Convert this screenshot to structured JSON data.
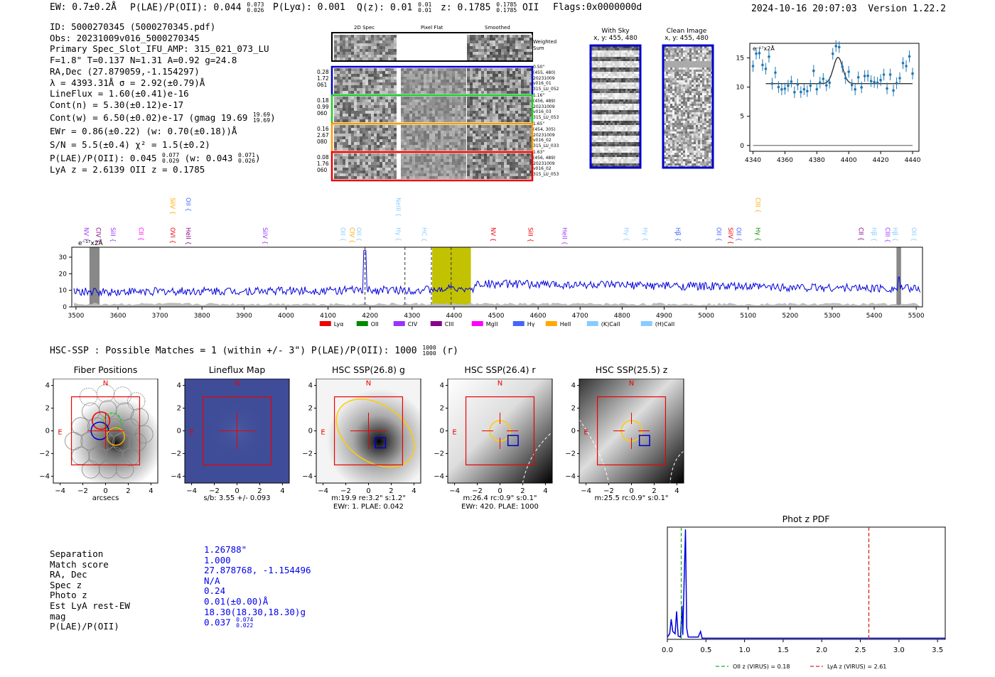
{
  "header": {
    "ew": "EW: 0.7±0.2Å",
    "plae_label": "P(LAE)/P(OII): 0.044",
    "plae_hi": "0.073",
    "plae_lo": "0.026",
    "plya": "P(Lyα): 0.001",
    "qz_label": "Q(z): 0.01",
    "qz_hi": "0.01",
    "qz_lo": "0.01",
    "z_label": "z: 0.1785",
    "z_hi": "0.1785",
    "z_lo": "0.1785",
    "z_line": "OII",
    "flags": "Flags:0x0000000d",
    "datetime": "2024-10-16 20:07:03",
    "version": "Version 1.22.2"
  },
  "info": {
    "id": "ID: 5000270345 (5000270345.pdf)",
    "obs": "Obs: 20231009v016_5000270345",
    "primary": "Primary Spec_Slot_IFU_AMP: 315_021_073_LU",
    "fields": "F=1.8\"  T=0.137  N=1.31  A=0.92  g=24.8",
    "radec": "RA,Dec (27.879059,-1.154297)",
    "lambda": "λ = 4393.31Å  σ = 2.92(±0.79)Å",
    "lineflux": "LineFlux = 1.60(±0.41)e-16",
    "contn": "Cont(n) = 5.30(±0.12)e-17",
    "contw": "Cont(w) = 6.50(±0.02)e-17 (gmag 19.69",
    "contw_hi": "19.69",
    "contw_lo": "19.69",
    "ewr": "EWr = 0.86(±0.22) (w: 0.70(±0.18))Å",
    "sn": "S/N = 5.5(±0.4)  χ² = 1.5(±0.2)",
    "plae": "P(LAE)/P(OII): 0.045",
    "plae_hi": "0.077",
    "plae_lo": "0.029",
    "plae_w": "(w: 0.043",
    "plae_w_hi": "0.071",
    "plae_w_lo": "0.026",
    "lyaz": "LyA z = 2.6139  OII z = 0.1785"
  },
  "cutouts": {
    "col_2d": "2D Spec",
    "col_flat": "Pixel Flat",
    "col_smooth": "Smoothed",
    "weighted": "Weighted Sum",
    "rows": [
      {
        "l1": "0.28",
        "l2": "1.72",
        "l3": "061",
        "r1": "0.50\"",
        "r2": "(455, 480)",
        "r3": "20231009",
        "r4": "v016_01",
        "r5": "315_LU_052",
        "color": "#0000cc"
      },
      {
        "l1": "0.18",
        "l2": "0.99",
        "l3": "060",
        "r1": "1.16\"",
        "r2": "(456, 489)",
        "r3": "20231009",
        "r4": "v016_03",
        "r5": "315_LU_053",
        "color": "#22cc22"
      },
      {
        "l1": "0.16",
        "l2": "2.67",
        "l3": "080",
        "r1": "1.65\"",
        "r2": "(454, 305)",
        "r3": "20231009",
        "r4": "v016_02",
        "r5": "315_LU_033",
        "color": "#ff9900"
      },
      {
        "l1": "0.08",
        "l2": "1.76",
        "l3": "060",
        "r1": "1.63\"",
        "r2": "(456, 489)",
        "r3": "20231009",
        "r4": "v016_02",
        "r5": "315_LU_053",
        "color": "#ee0000"
      }
    ],
    "with_sky": "With Sky",
    "with_sky_xy": "x, y: 455, 480",
    "clean": "Clean Image",
    "clean_xy": "x, y: 455, 480"
  },
  "fit_plot": {
    "units": "e⁻¹⁷x2Å",
    "x_ticks": [
      "4340",
      "4360",
      "4380",
      "4400",
      "4420",
      "4440"
    ],
    "y_ticks": [
      "15",
      "10",
      "5",
      "0"
    ]
  },
  "spectrum": {
    "units": "e⁻¹⁷x2Å",
    "x_ticks": [
      "3500",
      "3600",
      "3700",
      "3800",
      "3900",
      "4000",
      "4100",
      "4200",
      "4300",
      "4400",
      "4500",
      "4600",
      "4700",
      "4800",
      "4900",
      "5000",
      "5100",
      "5200",
      "5300",
      "5400",
      "5500"
    ],
    "y_ticks": [
      "30",
      "20",
      "10",
      "0"
    ],
    "legend": [
      {
        "label": "Lyα",
        "color": "#ee0000"
      },
      {
        "label": "OII",
        "color": "#008800"
      },
      {
        "label": "CIV",
        "color": "#9933ff"
      },
      {
        "label": "CIII",
        "color": "#880088"
      },
      {
        "label": "MgII",
        "color": "#ff00ff"
      },
      {
        "label": "Hγ",
        "color": "#4466ff"
      },
      {
        "label": "HeII",
        "color": "#ffaa00"
      },
      {
        "label": "(K)CaII",
        "color": "#88ccff"
      },
      {
        "label": "(H)CaII",
        "color": "#88ccff"
      }
    ],
    "lines": [
      {
        "t": "NV",
        "c": "#9933ff",
        "wl": 3520,
        "r": 1
      },
      {
        "t": "CIV",
        "c": "#880088",
        "wl": 3548,
        "r": 1
      },
      {
        "t": "SiII",
        "c": "#9933ff",
        "wl": 3583,
        "r": 1
      },
      {
        "t": "CII",
        "c": "#ff00ff",
        "wl": 3650,
        "r": 1
      },
      {
        "t": "SiIV",
        "c": "#ffaa00",
        "wl": 3725,
        "r": 0
      },
      {
        "t": "OVI",
        "c": "#ee0000",
        "wl": 3725,
        "r": 1
      },
      {
        "t": "OII",
        "c": "#4466ff",
        "wl": 3762,
        "r": 0
      },
      {
        "t": "HeII",
        "c": "#880088",
        "wl": 3762,
        "r": 1
      },
      {
        "t": "SiIV",
        "c": "#9933ff",
        "wl": 3945,
        "r": 1
      },
      {
        "t": "OII",
        "c": "#88ccff",
        "wl": 4130,
        "r": 1
      },
      {
        "t": "CIV",
        "c": "#ffaa00",
        "wl": 4152,
        "r": 1
      },
      {
        "t": "OII",
        "c": "#88ccff",
        "wl": 4168,
        "r": 1
      },
      {
        "t": "NeIII",
        "c": "#88ccff",
        "wl": 4262,
        "r": 0
      },
      {
        "t": "Hγ",
        "c": "#88ccff",
        "wl": 4262,
        "r": 1
      },
      {
        "t": "HC",
        "c": "#88ccff",
        "wl": 4324,
        "r": 1
      },
      {
        "t": "NV",
        "c": "#ee0000",
        "wl": 4488,
        "r": 1
      },
      {
        "t": "SiII",
        "c": "#ee0000",
        "wl": 4577,
        "r": 1
      },
      {
        "t": "HeII",
        "c": "#9933ff",
        "wl": 4658,
        "r": 1
      },
      {
        "t": "Hγ",
        "c": "#88ccff",
        "wl": 4805,
        "r": 1
      },
      {
        "t": "Hγ",
        "c": "#88ccff",
        "wl": 4850,
        "r": 1
      },
      {
        "t": "Hβ",
        "c": "#4466ff",
        "wl": 4928,
        "r": 1
      },
      {
        "t": "OII",
        "c": "#4466ff",
        "wl": 5025,
        "r": 1
      },
      {
        "t": "SiIV",
        "c": "#ee0000",
        "wl": 5053,
        "r": 1
      },
      {
        "t": "OII",
        "c": "#4466ff",
        "wl": 5073,
        "r": 1
      },
      {
        "t": "CIII",
        "c": "#ffaa00",
        "wl": 5118,
        "r": 0
      },
      {
        "t": "Hγ",
        "c": "#008800",
        "wl": 5118,
        "r": 1
      },
      {
        "t": "CII",
        "c": "#880088",
        "wl": 5364,
        "r": 1
      },
      {
        "t": "Hβ",
        "c": "#88ccff",
        "wl": 5395,
        "r": 1
      },
      {
        "t": "CIII",
        "c": "#9933ff",
        "wl": 5427,
        "r": 1
      },
      {
        "t": "Hβ",
        "c": "#88ccff",
        "wl": 5445,
        "r": 1
      },
      {
        "t": "OII",
        "c": "#88ccff",
        "wl": 5490,
        "r": 1
      }
    ]
  },
  "hsc": {
    "header": "HSC-SSP : Possible Matches = 1 (within +/- 3\")  P(LAE)/P(OII): 1000",
    "header_hi": "1000",
    "header_lo": "1000",
    "header_tail": "(r)",
    "panels": [
      {
        "title": "Fiber Positions",
        "cap1": "arcsecs",
        "cap2": ""
      },
      {
        "title": "Lineflux Map",
        "cap1": "s/b: 3.55 +/- 0.093",
        "cap2": ""
      },
      {
        "title": "HSC SSP(26.8) g",
        "cap1": "m:19.9  re:3.2\"  s:1.2\"",
        "cap2": "EWr: 1. PLAE: 0.042"
      },
      {
        "title": "HSC SSP(26.4) r",
        "cap1": "m:26.4 rc:0.9\"  s:0.1\"",
        "cap2": "EWr: 420. PLAE: 1000"
      },
      {
        "title": "HSC SSP(25.5) z",
        "cap1": "m:25.5 rc:0.9\"  s:0.1\"",
        "cap2": ""
      }
    ],
    "north": "N",
    "east": "E",
    "ticks": [
      "4",
      "2",
      "0",
      "−2",
      "−4"
    ],
    "xticks": [
      "−4",
      "−2",
      "0",
      "2",
      "4"
    ]
  },
  "match": {
    "labels": [
      "Separation",
      "Match score",
      "RA, Dec",
      "Spec z",
      "Photo z",
      "Est LyA rest-EW",
      "mag",
      "P(LAE)/P(OII)"
    ],
    "values": [
      "1.26788\"",
      "1.000",
      "27.878768, -1.154496",
      "N/A",
      "0.24",
      "0.01(±0.00)Å",
      "18.30(18.30,18.30)g",
      "0.037"
    ],
    "plae_hi": "0.074",
    "plae_lo": "0.022"
  },
  "photz": {
    "title": "Phot z PDF",
    "x_ticks": [
      "0.0",
      "0.5",
      "1.0",
      "1.5",
      "2.0",
      "2.5",
      "3.0",
      "3.5"
    ],
    "legend_oii": "OII z (VIRUS) = 0.18",
    "legend_lya": "LyA z (VIRUS) = 2.61",
    "oii_z": 0.18,
    "lya_z": 2.61
  }
}
